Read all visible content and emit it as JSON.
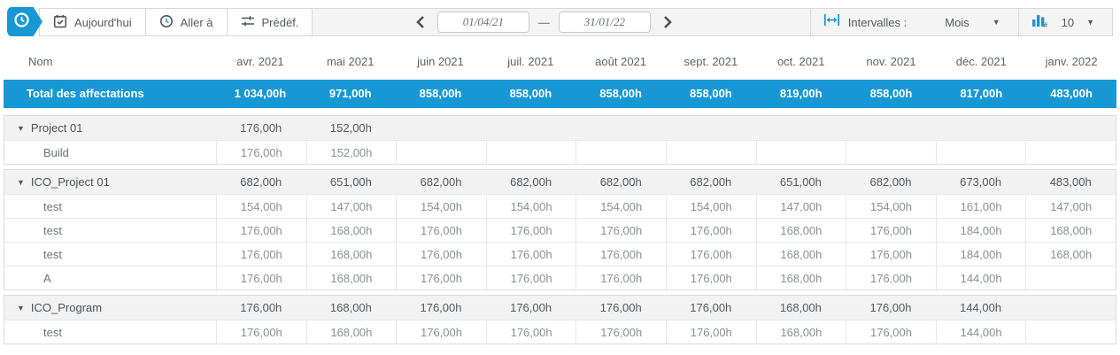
{
  "colors": {
    "accent_blue": "#1798d5",
    "total_row_bg": "#1798d5",
    "group_row_bg": "#f2f2f2",
    "toolbar_bg": "#f4f4f4"
  },
  "icons": {
    "collapse_triangle": "▼",
    "dropdown_caret": "▼",
    "range_dash": "—"
  },
  "toolbar": {
    "today_label": "Aujourd'hui",
    "goto_label": "Aller à",
    "presets_label": "Prédéf.",
    "date_from": "01/04/21",
    "date_to": "31/01/22",
    "intervals_label": "Intervalles :",
    "interval_value": "Mois",
    "chart_count_value": "10"
  },
  "table": {
    "name_header": "Nom",
    "months": [
      "avr. 2021",
      "mai 2021",
      "juin 2021",
      "juil. 2021",
      "août 2021",
      "sept. 2021",
      "oct. 2021",
      "nov. 2021",
      "déc. 2021",
      "janv. 2022"
    ],
    "total_label": "Total des affectations",
    "total_values": [
      "1 034,00h",
      "971,00h",
      "858,00h",
      "858,00h",
      "858,00h",
      "858,00h",
      "819,00h",
      "858,00h",
      "817,00h",
      "483,00h"
    ],
    "groups": [
      {
        "name": "Project 01",
        "values": [
          "176,00h",
          "152,00h",
          "",
          "",
          "",
          "",
          "",
          "",
          "",
          ""
        ],
        "children": [
          {
            "name": "Build",
            "values": [
              "176,00h",
              "152,00h",
              "",
              "",
              "",
              "",
              "",
              "",
              "",
              ""
            ]
          }
        ]
      },
      {
        "name": "ICO_Project 01",
        "values": [
          "682,00h",
          "651,00h",
          "682,00h",
          "682,00h",
          "682,00h",
          "682,00h",
          "651,00h",
          "682,00h",
          "673,00h",
          "483,00h"
        ],
        "children": [
          {
            "name": "test",
            "values": [
              "154,00h",
              "147,00h",
              "154,00h",
              "154,00h",
              "154,00h",
              "154,00h",
              "147,00h",
              "154,00h",
              "161,00h",
              "147,00h"
            ]
          },
          {
            "name": "test",
            "values": [
              "176,00h",
              "168,00h",
              "176,00h",
              "176,00h",
              "176,00h",
              "176,00h",
              "168,00h",
              "176,00h",
              "184,00h",
              "168,00h"
            ]
          },
          {
            "name": "test",
            "values": [
              "176,00h",
              "168,00h",
              "176,00h",
              "176,00h",
              "176,00h",
              "176,00h",
              "168,00h",
              "176,00h",
              "184,00h",
              "168,00h"
            ]
          },
          {
            "name": "A",
            "values": [
              "176,00h",
              "168,00h",
              "176,00h",
              "176,00h",
              "176,00h",
              "176,00h",
              "168,00h",
              "176,00h",
              "144,00h",
              ""
            ]
          }
        ]
      },
      {
        "name": "ICO_Program",
        "values": [
          "176,00h",
          "168,00h",
          "176,00h",
          "176,00h",
          "176,00h",
          "176,00h",
          "168,00h",
          "176,00h",
          "144,00h",
          ""
        ],
        "children": [
          {
            "name": "test",
            "values": [
              "176,00h",
              "168,00h",
              "176,00h",
              "176,00h",
              "176,00h",
              "176,00h",
              "168,00h",
              "176,00h",
              "144,00h",
              ""
            ]
          }
        ]
      }
    ]
  }
}
